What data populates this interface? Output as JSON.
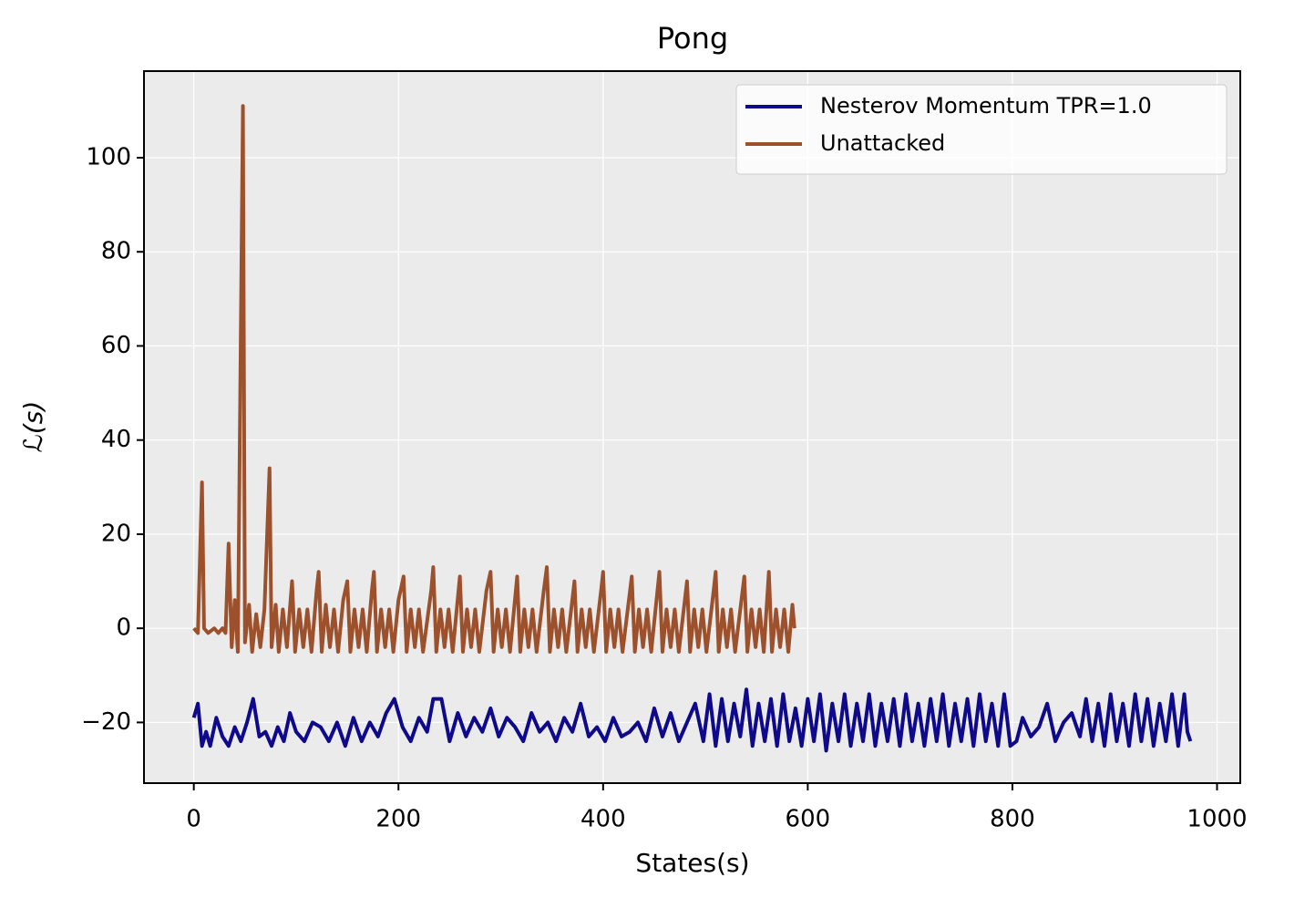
{
  "chart_data": {
    "type": "line",
    "title": "Pong",
    "xlabel": "States(s)",
    "ylabel": "ℒ(s)",
    "xlim": [
      -48.7,
      1022.7
    ],
    "ylim": [
      -32.9,
      118.4
    ],
    "xticks": [
      0,
      200,
      400,
      600,
      800,
      1000
    ],
    "yticks": [
      {
        "value": -20,
        "label": "−20"
      },
      0,
      20,
      40,
      60,
      80,
      100
    ],
    "grid": true,
    "legend": "upper right",
    "series": [
      {
        "name": "Nesterov Momentum TPR=1.0",
        "color": "#0f0a8c",
        "x": [
          0,
          4,
          8,
          12,
          16,
          22,
          28,
          34,
          40,
          46,
          52,
          58,
          64,
          70,
          76,
          82,
          88,
          94,
          100,
          108,
          116,
          124,
          132,
          140,
          148,
          156,
          164,
          172,
          180,
          188,
          196,
          204,
          212,
          220,
          228,
          234,
          242,
          250,
          258,
          266,
          274,
          282,
          290,
          298,
          306,
          314,
          322,
          330,
          338,
          346,
          354,
          362,
          370,
          378,
          386,
          394,
          402,
          410,
          418,
          426,
          434,
          442,
          450,
          458,
          466,
          474,
          482,
          490,
          498,
          504,
          510,
          516,
          522,
          528,
          534,
          540,
          546,
          552,
          558,
          564,
          570,
          576,
          582,
          588,
          594,
          600,
          606,
          612,
          618,
          624,
          630,
          636,
          642,
          648,
          654,
          660,
          666,
          672,
          678,
          684,
          690,
          696,
          702,
          708,
          714,
          720,
          726,
          732,
          738,
          744,
          750,
          756,
          762,
          768,
          774,
          780,
          786,
          792,
          798,
          804,
          810,
          818,
          826,
          834,
          842,
          850,
          858,
          866,
          872,
          878,
          884,
          890,
          896,
          902,
          908,
          914,
          920,
          926,
          932,
          938,
          944,
          950,
          956,
          962,
          968,
          971,
          974
        ],
        "values": [
          -19,
          -16,
          -25,
          -22,
          -25,
          -19,
          -23,
          -25,
          -21,
          -24,
          -20,
          -15,
          -23,
          -22,
          -25,
          -21,
          -24,
          -18,
          -22,
          -24,
          -20,
          -21,
          -24,
          -20,
          -25,
          -19,
          -24,
          -20,
          -23,
          -18,
          -15,
          -21,
          -24,
          -19,
          -22,
          -15,
          -15,
          -24,
          -18,
          -23,
          -19,
          -22,
          -17,
          -23,
          -19,
          -21,
          -24,
          -18,
          -22,
          -20,
          -24,
          -19,
          -22,
          -16,
          -23,
          -21,
          -24,
          -19,
          -23,
          -22,
          -20,
          -24,
          -17,
          -23,
          -18,
          -24,
          -20,
          -16,
          -24,
          -14,
          -25,
          -15,
          -24,
          -16,
          -23,
          -13,
          -25,
          -16,
          -24,
          -15,
          -25,
          -14,
          -24,
          -17,
          -25,
          -15,
          -24,
          -14,
          -26,
          -16,
          -24,
          -14,
          -25,
          -16,
          -24,
          -14,
          -25,
          -16,
          -24,
          -15,
          -25,
          -14,
          -24,
          -16,
          -25,
          -15,
          -24,
          -14,
          -25,
          -16,
          -24,
          -15,
          -25,
          -14,
          -24,
          -16,
          -25,
          -14,
          -25,
          -24,
          -19,
          -23,
          -21,
          -16,
          -24,
          -20,
          -18,
          -23,
          -15,
          -24,
          -16,
          -25,
          -14,
          -24,
          -16,
          -25,
          -14,
          -24,
          -15,
          -25,
          -16,
          -24,
          -14,
          -25,
          -14,
          -22,
          -24
        ]
      },
      {
        "name": "Unattacked",
        "color": "#9c512c",
        "x": [
          0,
          4,
          8,
          10,
          14,
          20,
          24,
          28,
          31,
          34,
          37,
          40,
          43,
          48,
          50,
          54,
          57,
          61,
          65,
          69,
          74,
          76,
          80,
          83,
          87,
          91,
          96,
          99,
          103,
          107,
          111,
          115,
          120,
          122,
          125,
          129,
          133,
          137,
          141,
          146,
          150,
          153,
          157,
          161,
          165,
          169,
          174,
          176,
          179,
          183,
          187,
          191,
          195,
          200,
          205,
          208,
          212,
          216,
          220,
          224,
          232,
          234,
          237,
          241,
          245,
          249,
          253,
          260,
          263,
          267,
          271,
          275,
          279,
          286,
          290,
          293,
          297,
          301,
          305,
          309,
          316,
          319,
          323,
          327,
          331,
          335,
          342,
          345,
          348,
          352,
          356,
          360,
          364,
          372,
          375,
          379,
          383,
          387,
          391,
          398,
          400,
          403,
          407,
          411,
          415,
          419,
          428,
          431,
          435,
          439,
          443,
          447,
          455,
          458,
          462,
          466,
          470,
          474,
          482,
          485,
          489,
          493,
          497,
          501,
          508,
          510,
          513,
          517,
          521,
          525,
          529,
          538,
          541,
          545,
          549,
          553,
          557,
          562,
          565,
          569,
          573,
          577,
          581,
          585,
          587
        ],
        "values": [
          0,
          -1,
          31,
          0,
          -1,
          0,
          -1,
          0,
          -1,
          18,
          -4,
          6,
          -5,
          111,
          -3,
          5,
          -5,
          3,
          -4,
          4,
          34,
          -4,
          5,
          -5,
          4,
          -4,
          10,
          -5,
          4,
          -4,
          4,
          -5,
          8,
          12,
          -5,
          5,
          -4,
          4,
          -5,
          6,
          10,
          -5,
          4,
          -4,
          4,
          -5,
          8,
          12,
          -5,
          4,
          -4,
          4,
          -5,
          6,
          11,
          -5,
          4,
          -4,
          4,
          -5,
          8,
          13,
          -5,
          4,
          -4,
          4,
          -5,
          11,
          -5,
          4,
          -4,
          4,
          -5,
          8,
          12,
          -5,
          4,
          -4,
          4,
          -5,
          11,
          -5,
          4,
          -4,
          4,
          -5,
          8,
          13,
          -5,
          4,
          -4,
          4,
          -5,
          10,
          -5,
          4,
          -4,
          4,
          -5,
          8,
          12,
          -5,
          4,
          -4,
          4,
          -5,
          11,
          -5,
          4,
          -4,
          4,
          -5,
          12,
          -5,
          4,
          -4,
          4,
          -5,
          10,
          -5,
          4,
          -4,
          4,
          -5,
          8,
          12,
          -5,
          4,
          -4,
          4,
          -5,
          11,
          -5,
          4,
          -4,
          4,
          -5,
          12,
          -5,
          4,
          -4,
          4,
          -5,
          5,
          0
        ]
      }
    ]
  }
}
